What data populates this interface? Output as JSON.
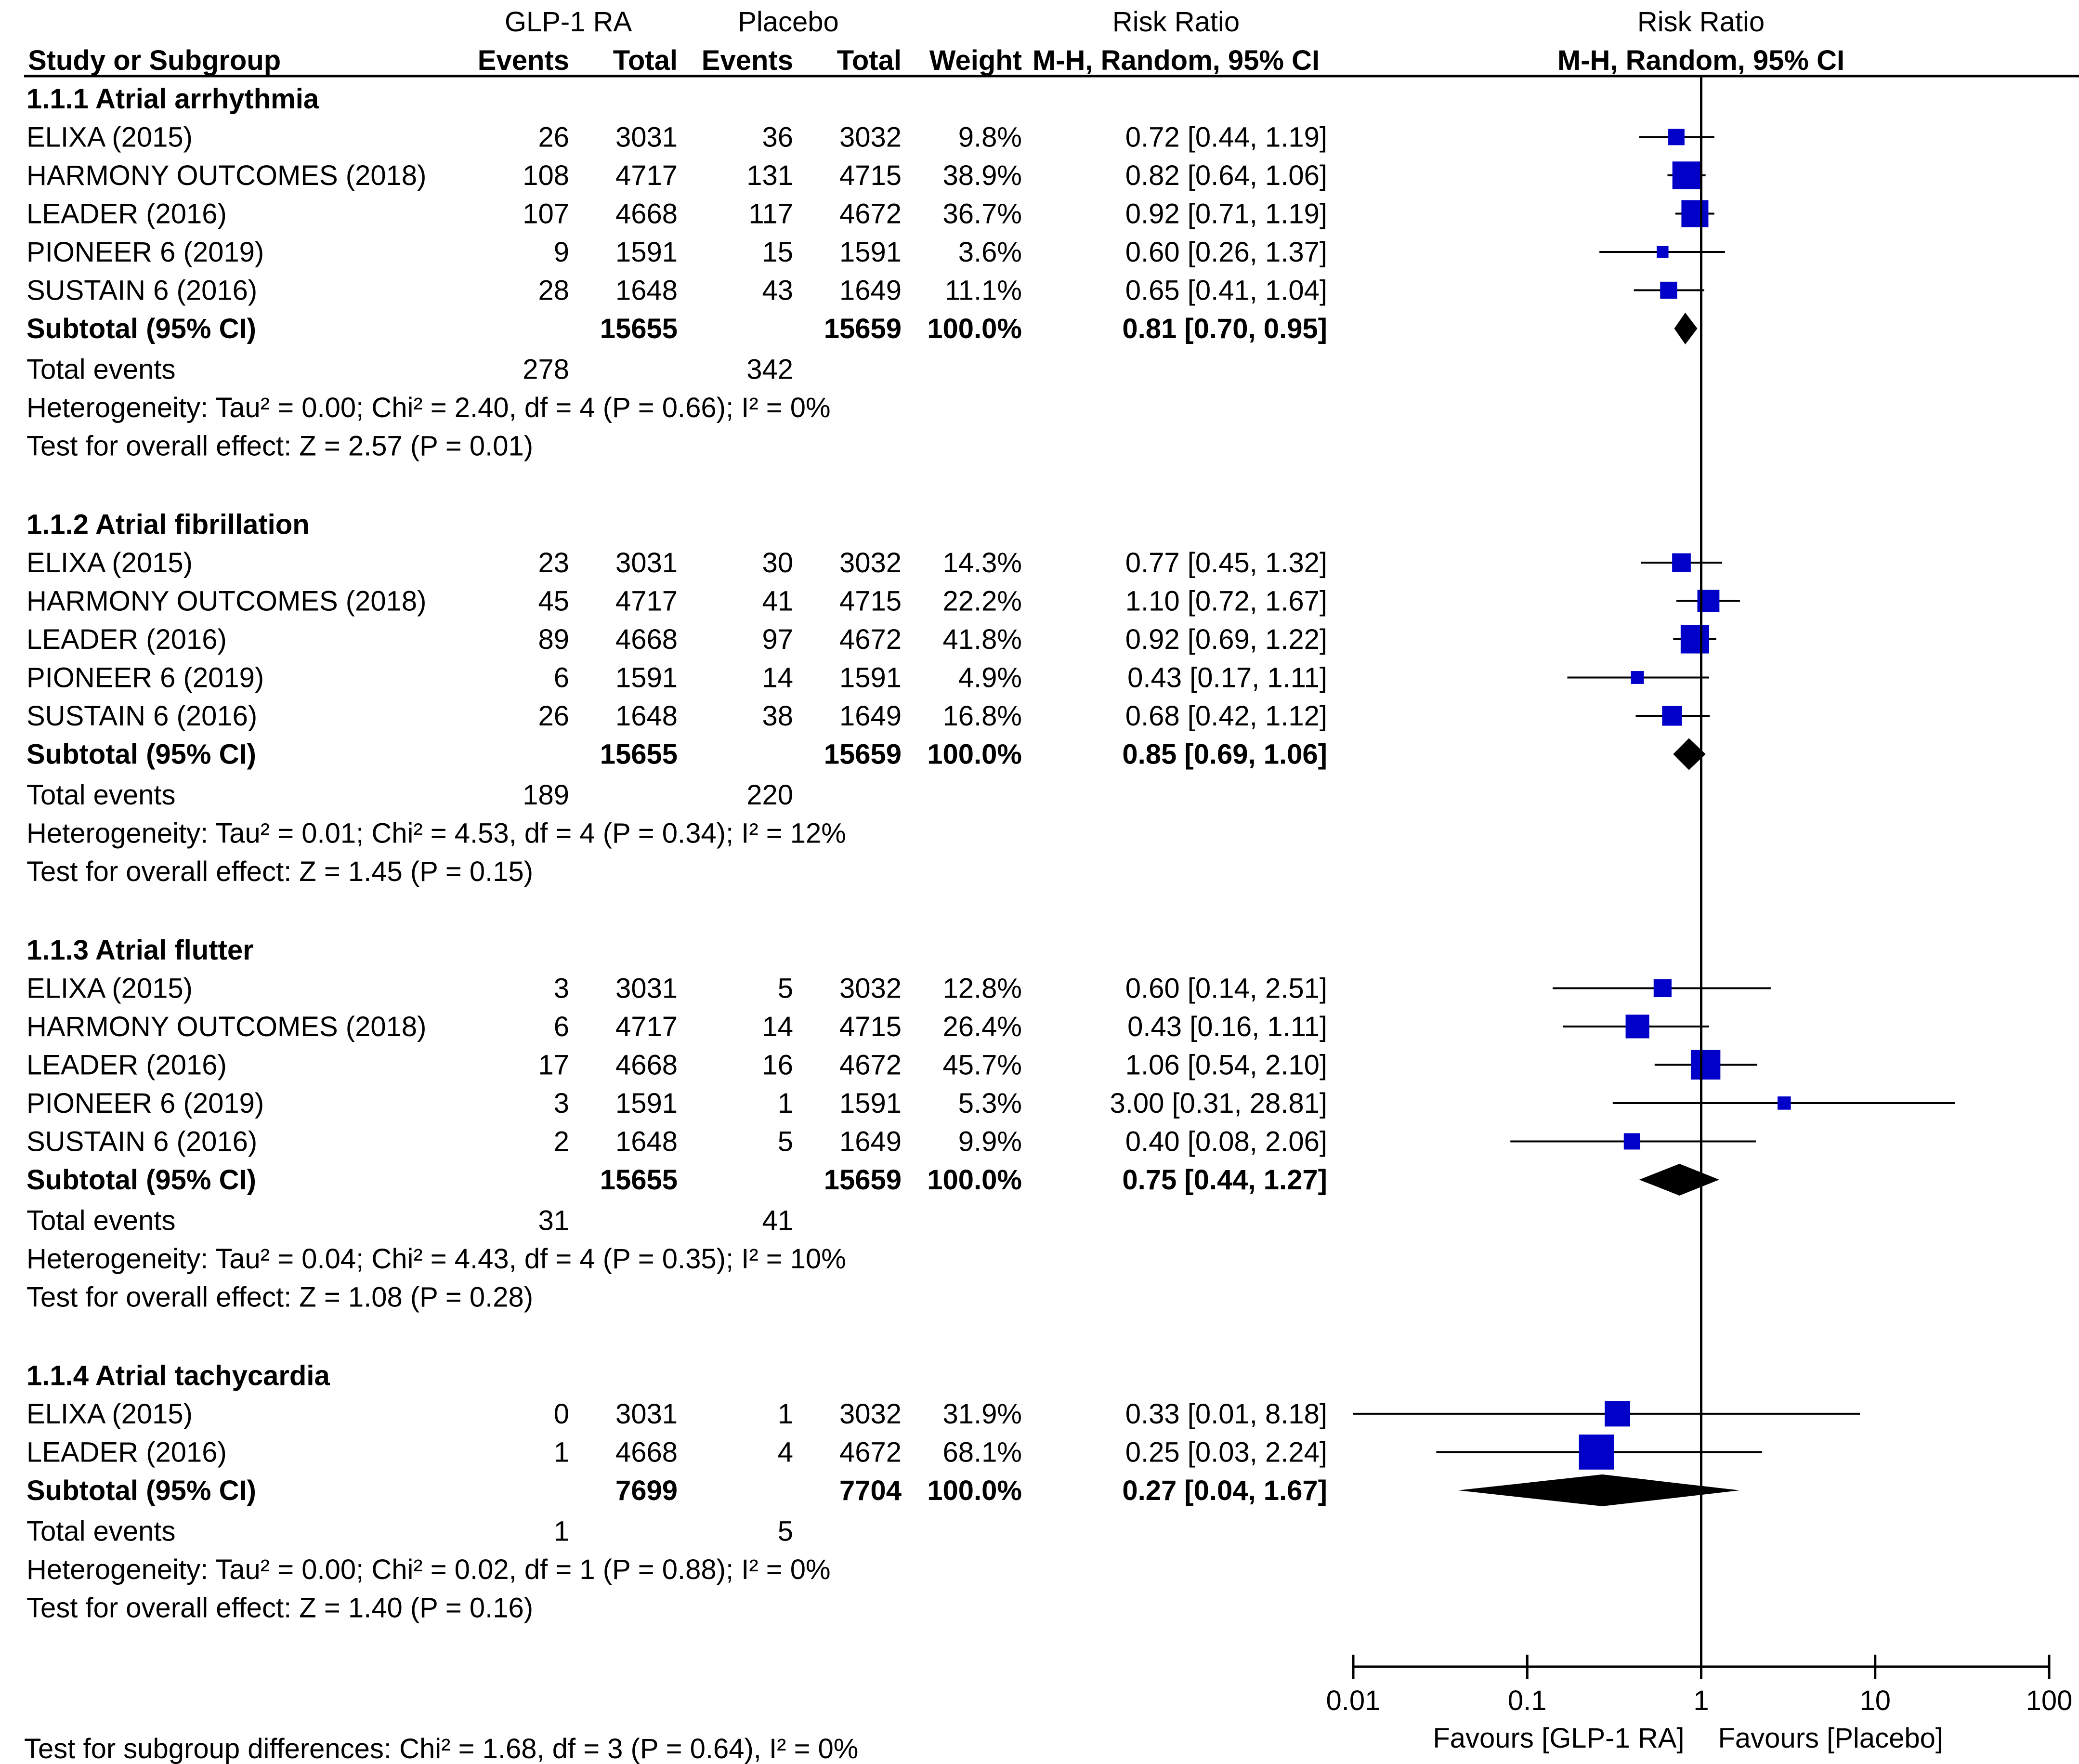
{
  "header": {
    "study_label": "Study or Subgroup",
    "group1_label": "GLP-1 RA",
    "group2_label": "Placebo",
    "events_label": "Events",
    "total_label": "Total",
    "weight_label": "Weight",
    "rr_label": "Risk Ratio",
    "rr_method": "M-H, Random, 95% CI",
    "plot_title": "Risk Ratio",
    "plot_method": "M-H, Random, 95% CI"
  },
  "chart_data": {
    "type": "forest",
    "title": "Risk Ratio",
    "xscale": "log",
    "xlim": [
      0.01,
      100
    ],
    "xticks": [
      "0.01",
      "0.1",
      "1",
      "10",
      "100"
    ],
    "reference_line": 1,
    "favours_left": "Favours [GLP-1 RA]",
    "favours_right": "Favours [Placebo]",
    "colors": {
      "box": "#0000c8",
      "diamond": "#000000",
      "line": "#000000"
    },
    "subgroups": [
      {
        "title": "1.1.1 Atrial arrhythmia",
        "studies": [
          {
            "name": "ELIXA (2015)",
            "e1": "26",
            "n1": "3031",
            "e2": "36",
            "n2": "3032",
            "weight": "9.8%",
            "ci_text": "0.72 [0.44, 1.19]",
            "rr": 0.72,
            "lo": 0.44,
            "hi": 1.19,
            "w": 9.8
          },
          {
            "name": "HARMONY OUTCOMES (2018)",
            "e1": "108",
            "n1": "4717",
            "e2": "131",
            "n2": "4715",
            "weight": "38.9%",
            "ci_text": "0.82 [0.64, 1.06]",
            "rr": 0.82,
            "lo": 0.64,
            "hi": 1.06,
            "w": 38.9
          },
          {
            "name": "LEADER (2016)",
            "e1": "107",
            "n1": "4668",
            "e2": "117",
            "n2": "4672",
            "weight": "36.7%",
            "ci_text": "0.92 [0.71, 1.19]",
            "rr": 0.92,
            "lo": 0.71,
            "hi": 1.19,
            "w": 36.7
          },
          {
            "name": "PIONEER 6 (2019)",
            "e1": "9",
            "n1": "1591",
            "e2": "15",
            "n2": "1591",
            "weight": "3.6%",
            "ci_text": "0.60 [0.26, 1.37]",
            "rr": 0.6,
            "lo": 0.26,
            "hi": 1.37,
            "w": 3.6
          },
          {
            "name": "SUSTAIN 6 (2016)",
            "e1": "28",
            "n1": "1648",
            "e2": "43",
            "n2": "1649",
            "weight": "11.1%",
            "ci_text": "0.65 [0.41, 1.04]",
            "rr": 0.65,
            "lo": 0.41,
            "hi": 1.04,
            "w": 11.1
          }
        ],
        "subtotal": {
          "label": "Subtotal (95% CI)",
          "n1": "15655",
          "n2": "15659",
          "weight": "100.0%",
          "ci_text": "0.81 [0.70, 0.95]",
          "rr": 0.81,
          "lo": 0.7,
          "hi": 0.95
        },
        "total_events": {
          "label": "Total events",
          "e1": "278",
          "e2": "342"
        },
        "heterogeneity": "Heterogeneity: Tau² = 0.00; Chi² = 2.40, df = 4 (P = 0.66); I² = 0%",
        "overall": "Test for overall effect: Z = 2.57 (P = 0.01)"
      },
      {
        "title": "1.1.2 Atrial fibrillation",
        "studies": [
          {
            "name": "ELIXA (2015)",
            "e1": "23",
            "n1": "3031",
            "e2": "30",
            "n2": "3032",
            "weight": "14.3%",
            "ci_text": "0.77 [0.45, 1.32]",
            "rr": 0.77,
            "lo": 0.45,
            "hi": 1.32,
            "w": 14.3
          },
          {
            "name": "HARMONY OUTCOMES (2018)",
            "e1": "45",
            "n1": "4717",
            "e2": "41",
            "n2": "4715",
            "weight": "22.2%",
            "ci_text": "1.10 [0.72, 1.67]",
            "rr": 1.1,
            "lo": 0.72,
            "hi": 1.67,
            "w": 22.2
          },
          {
            "name": "LEADER (2016)",
            "e1": "89",
            "n1": "4668",
            "e2": "97",
            "n2": "4672",
            "weight": "41.8%",
            "ci_text": "0.92 [0.69, 1.22]",
            "rr": 0.92,
            "lo": 0.69,
            "hi": 1.22,
            "w": 41.8
          },
          {
            "name": "PIONEER 6 (2019)",
            "e1": "6",
            "n1": "1591",
            "e2": "14",
            "n2": "1591",
            "weight": "4.9%",
            "ci_text": "0.43 [0.17, 1.11]",
            "rr": 0.43,
            "lo": 0.17,
            "hi": 1.11,
            "w": 4.9
          },
          {
            "name": "SUSTAIN 6 (2016)",
            "e1": "26",
            "n1": "1648",
            "e2": "38",
            "n2": "1649",
            "weight": "16.8%",
            "ci_text": "0.68 [0.42, 1.12]",
            "rr": 0.68,
            "lo": 0.42,
            "hi": 1.12,
            "w": 16.8
          }
        ],
        "subtotal": {
          "label": "Subtotal (95% CI)",
          "n1": "15655",
          "n2": "15659",
          "weight": "100.0%",
          "ci_text": "0.85 [0.69, 1.06]",
          "rr": 0.85,
          "lo": 0.69,
          "hi": 1.06
        },
        "total_events": {
          "label": "Total events",
          "e1": "189",
          "e2": "220"
        },
        "heterogeneity": "Heterogeneity: Tau² = 0.01; Chi² = 4.53, df = 4 (P = 0.34); I² = 12%",
        "overall": "Test for overall effect: Z = 1.45 (P = 0.15)"
      },
      {
        "title": "1.1.3 Atrial flutter",
        "studies": [
          {
            "name": "ELIXA (2015)",
            "e1": "3",
            "n1": "3031",
            "e2": "5",
            "n2": "3032",
            "weight": "12.8%",
            "ci_text": "0.60 [0.14, 2.51]",
            "rr": 0.6,
            "lo": 0.14,
            "hi": 2.51,
            "w": 12.8
          },
          {
            "name": "HARMONY OUTCOMES (2018)",
            "e1": "6",
            "n1": "4717",
            "e2": "14",
            "n2": "4715",
            "weight": "26.4%",
            "ci_text": "0.43 [0.16, 1.11]",
            "rr": 0.43,
            "lo": 0.16,
            "hi": 1.11,
            "w": 26.4
          },
          {
            "name": "LEADER (2016)",
            "e1": "17",
            "n1": "4668",
            "e2": "16",
            "n2": "4672",
            "weight": "45.7%",
            "ci_text": "1.06 [0.54, 2.10]",
            "rr": 1.06,
            "lo": 0.54,
            "hi": 2.1,
            "w": 45.7
          },
          {
            "name": "PIONEER 6 (2019)",
            "e1": "3",
            "n1": "1591",
            "e2": "1",
            "n2": "1591",
            "weight": "5.3%",
            "ci_text": "3.00 [0.31, 28.81]",
            "rr": 3.0,
            "lo": 0.31,
            "hi": 28.81,
            "w": 5.3
          },
          {
            "name": "SUSTAIN 6 (2016)",
            "e1": "2",
            "n1": "1648",
            "e2": "5",
            "n2": "1649",
            "weight": "9.9%",
            "ci_text": "0.40 [0.08, 2.06]",
            "rr": 0.4,
            "lo": 0.08,
            "hi": 2.06,
            "w": 9.9
          }
        ],
        "subtotal": {
          "label": "Subtotal (95% CI)",
          "n1": "15655",
          "n2": "15659",
          "weight": "100.0%",
          "ci_text": "0.75 [0.44, 1.27]",
          "rr": 0.75,
          "lo": 0.44,
          "hi": 1.27
        },
        "total_events": {
          "label": "Total events",
          "e1": "31",
          "e2": "41"
        },
        "heterogeneity": "Heterogeneity: Tau² = 0.04; Chi² = 4.43, df = 4 (P = 0.35); I² = 10%",
        "overall": "Test for overall effect: Z = 1.08 (P = 0.28)"
      },
      {
        "title": "1.1.4 Atrial tachycardia",
        "studies": [
          {
            "name": "ELIXA (2015)",
            "e1": "0",
            "n1": "3031",
            "e2": "1",
            "n2": "3032",
            "weight": "31.9%",
            "ci_text": "0.33 [0.01, 8.18]",
            "rr": 0.33,
            "lo": 0.01,
            "hi": 8.18,
            "w": 31.9
          },
          {
            "name": "LEADER (2016)",
            "e1": "1",
            "n1": "4668",
            "e2": "4",
            "n2": "4672",
            "weight": "68.1%",
            "ci_text": "0.25 [0.03, 2.24]",
            "rr": 0.25,
            "lo": 0.03,
            "hi": 2.24,
            "w": 68.1
          }
        ],
        "subtotal": {
          "label": "Subtotal (95% CI)",
          "n1": "7699",
          "n2": "7704",
          "weight": "100.0%",
          "ci_text": "0.27 [0.04, 1.67]",
          "rr": 0.27,
          "lo": 0.04,
          "hi": 1.67
        },
        "total_events": {
          "label": "Total events",
          "e1": "1",
          "e2": "5"
        },
        "heterogeneity": "Heterogeneity: Tau² = 0.00; Chi² = 0.02, df = 1 (P = 0.88); I² = 0%",
        "overall": "Test for overall effect: Z = 1.40 (P = 0.16)"
      }
    ],
    "subgroup_test": "Test for subgroup differences: Chi² = 1.68, df = 3 (P = 0.64), I² = 0%"
  }
}
